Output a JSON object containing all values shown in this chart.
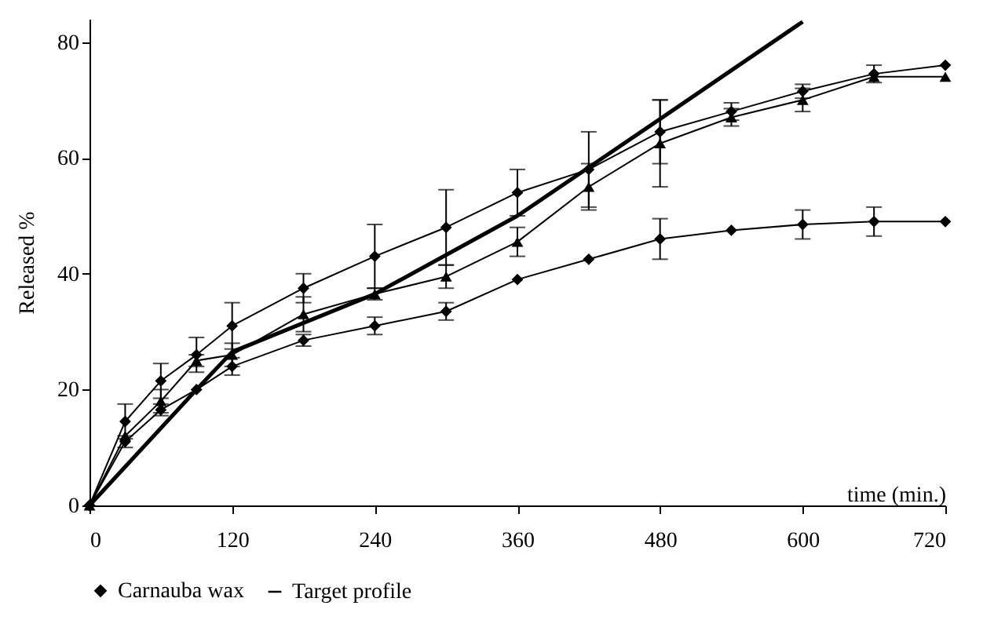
{
  "chart_data": {
    "type": "line",
    "xlabel": "time (min.)",
    "ylabel": "Released %",
    "xlim": [
      0,
      720
    ],
    "xticks": [
      0,
      120,
      240,
      360,
      480,
      600,
      720
    ],
    "ylim": [
      0,
      84
    ],
    "yticks": [
      0,
      20,
      40,
      60,
      80
    ],
    "grid": false,
    "legend": "bottom",
    "series": [
      {
        "color": "#000000",
        "marker": "triangle",
        "x": [
          0,
          30,
          60,
          90,
          120,
          180,
          240,
          300,
          360,
          420,
          480,
          540,
          600,
          660,
          720
        ],
        "values": [
          0,
          12,
          18,
          25,
          26,
          33,
          36.5,
          39.5,
          45.5,
          55,
          62.5,
          67,
          70,
          74,
          74
        ],
        "errors": [
          null,
          null,
          2,
          1,
          2,
          3,
          1,
          2,
          2.5,
          4,
          7.5,
          1.5,
          2,
          null,
          null
        ]
      },
      {
        "color": "#000000",
        "marker": "diamond",
        "x": [
          0,
          30,
          60,
          90,
          120,
          180,
          240,
          300,
          360,
          420,
          480,
          540,
          600,
          660,
          720
        ],
        "values": [
          0,
          14.5,
          21.5,
          26,
          31,
          37.5,
          43,
          48,
          54,
          58,
          64.5,
          68,
          71.5,
          74.5,
          76
        ],
        "errors": [
          null,
          3,
          3,
          3,
          4,
          2.5,
          5.5,
          6.5,
          4,
          6.5,
          5.5,
          1.5,
          1.2,
          1.5,
          null
        ]
      },
      {
        "name": "Carnauba wax",
        "color": "#000000",
        "marker": "diamond",
        "x": [
          0,
          30,
          60,
          90,
          120,
          180,
          240,
          300,
          360,
          420,
          480,
          540,
          600,
          660,
          720
        ],
        "values": [
          0,
          11,
          16.5,
          20,
          24,
          28.5,
          31,
          33.5,
          39,
          42.5,
          46,
          47.5,
          48.5,
          49,
          49
        ],
        "errors": [
          null,
          1,
          1,
          null,
          1.5,
          1,
          1.5,
          1.5,
          null,
          null,
          3.5,
          null,
          2.5,
          2.5,
          null
        ]
      },
      {
        "name": "Target profile",
        "color": "#000000",
        "marker": "none",
        "x": [
          0,
          90,
          120,
          240,
          360,
          480,
          600
        ],
        "values": [
          0,
          20,
          26.5,
          36.5,
          50,
          66.7,
          83.5
        ]
      }
    ]
  }
}
